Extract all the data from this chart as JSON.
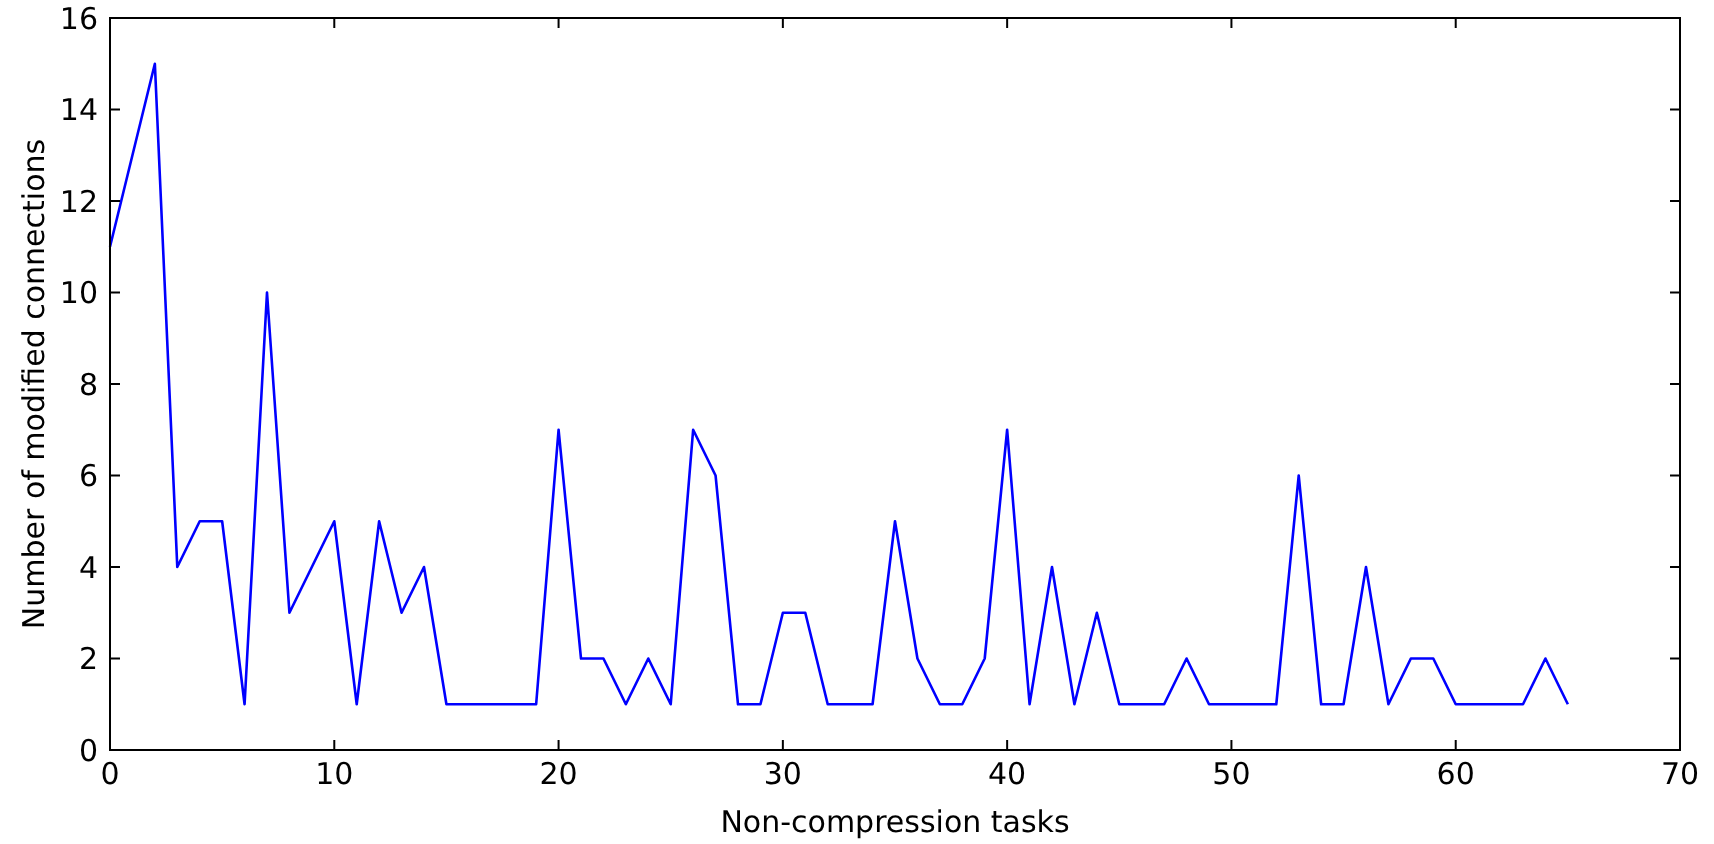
{
  "chart_data": {
    "type": "line",
    "xlabel": "Non-compression tasks",
    "ylabel": "Number of modified connections",
    "x": [
      0,
      1,
      2,
      3,
      4,
      5,
      6,
      7,
      8,
      9,
      10,
      11,
      12,
      13,
      14,
      15,
      16,
      17,
      18,
      19,
      20,
      21,
      22,
      23,
      24,
      25,
      26,
      27,
      28,
      29,
      30,
      31,
      32,
      33,
      34,
      35,
      36,
      37,
      38,
      39,
      40,
      41,
      42,
      43,
      44,
      45,
      46,
      47,
      48,
      49,
      50,
      51,
      52,
      53,
      54,
      55,
      56,
      57,
      58,
      59,
      60,
      61,
      62,
      63,
      64,
      65
    ],
    "series": [
      {
        "color": "#0000ff",
        "values": [
          11,
          13,
          15,
          4,
          5,
          5,
          1,
          10,
          3,
          4,
          5,
          1,
          5,
          3,
          4,
          1,
          1,
          1,
          1,
          1,
          7,
          2,
          2,
          1,
          2,
          1,
          7,
          6,
          1,
          1,
          3,
          3,
          1,
          1,
          1,
          5,
          2,
          1,
          1,
          2,
          7,
          1,
          4,
          1,
          3,
          1,
          1,
          1,
          2,
          1,
          1,
          1,
          1,
          6,
          1,
          1,
          4,
          1,
          2,
          2,
          1,
          1,
          1,
          1,
          2,
          1
        ]
      }
    ],
    "xlim": [
      0,
      70
    ],
    "xticks": [
      0,
      10,
      20,
      30,
      40,
      50,
      60,
      70
    ],
    "ylim": [
      0,
      16
    ],
    "yticks": [
      0,
      2,
      4,
      6,
      8,
      10,
      12,
      14,
      16
    ],
    "marker": "none",
    "line_style": "solid"
  }
}
